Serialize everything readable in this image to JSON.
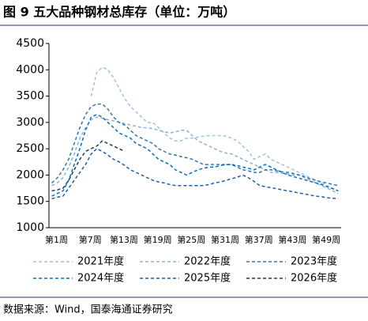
{
  "chart_data": {
    "type": "line",
    "title": "图 9 五大品种钢材总库存（单位：万吨）",
    "source": "数据来源：Wind，国泰海通证券研究",
    "categories": [
      "第1周",
      null,
      null,
      null,
      null,
      null,
      "第7周",
      null,
      null,
      null,
      null,
      null,
      "第13周",
      null,
      null,
      null,
      null,
      null,
      "第19周",
      null,
      null,
      null,
      null,
      null,
      "第25周",
      null,
      null,
      null,
      null,
      null,
      "第31周",
      null,
      null,
      null,
      null,
      null,
      "第37周",
      null,
      null,
      null,
      null,
      null,
      "第43周",
      null,
      null,
      null,
      null,
      null,
      "第49周",
      null,
      null,
      null
    ],
    "ylim": [
      1000,
      4500
    ],
    "yticks": [
      1000,
      1500,
      2000,
      2500,
      3000,
      3500,
      4000,
      4500
    ],
    "grid": false,
    "legend": "bottom",
    "series": [
      {
        "name": "2021年度",
        "color": "#9dc3e6",
        "values": [
          null,
          null,
          null,
          null,
          null,
          null,
          null,
          3500,
          3950,
          4050,
          4000,
          3850,
          3650,
          3450,
          3300,
          3200,
          3100,
          3000,
          3000,
          2900,
          2800,
          2700,
          2650,
          2650,
          2700,
          2700,
          2720,
          2740,
          2750,
          2750,
          2750,
          2740,
          2700,
          2650,
          2550,
          2450,
          2300,
          2350,
          2400,
          2300,
          2250,
          2200,
          2150,
          2100,
          2050,
          2000,
          1950,
          1900,
          1850,
          1800,
          1750,
          1700
        ]
      },
      {
        "name": "2022年度",
        "color": "#8fb0dc",
        "values": [
          1800,
          1850,
          1950,
          2150,
          2400,
          2700,
          2900,
          3050,
          3100,
          3080,
          3050,
          3030,
          3000,
          2980,
          2950,
          2930,
          2900,
          2900,
          2880,
          2850,
          2820,
          2800,
          2820,
          2850,
          2850,
          2750,
          2650,
          2600,
          2550,
          2500,
          2450,
          2420,
          2400,
          2350,
          2300,
          2250,
          2200,
          2150,
          2100,
          2050,
          2050,
          2030,
          2020,
          2000,
          2000,
          1950,
          1900,
          1850,
          1800,
          1750,
          1700,
          1650
        ]
      },
      {
        "name": "2023年度",
        "color": "#2e75b6",
        "values": [
          1850,
          1950,
          2100,
          2300,
          2600,
          2900,
          3150,
          3300,
          3350,
          3350,
          3250,
          3100,
          3000,
          2950,
          2850,
          2750,
          2700,
          2650,
          2600,
          2500,
          2450,
          2400,
          2380,
          2350,
          2330,
          2300,
          2250,
          2200,
          2200,
          2200,
          2200,
          2200,
          2200,
          2150,
          2100,
          2080,
          2050,
          2050,
          2100,
          2100,
          2080,
          2060,
          2050,
          2030,
          2000,
          1970,
          1930,
          1900,
          1870,
          1850,
          1820,
          1800
        ]
      },
      {
        "name": "2024年度",
        "color": "#0070c0",
        "values": [
          1600,
          1650,
          1700,
          1900,
          2200,
          2500,
          2850,
          3100,
          3150,
          3100,
          3000,
          2900,
          2800,
          2750,
          2700,
          2600,
          2550,
          2500,
          2400,
          2300,
          2250,
          2200,
          2100,
          2050,
          2000,
          2050,
          2100,
          2130,
          2150,
          2150,
          2180,
          2200,
          2200,
          2180,
          2150,
          2130,
          2100,
          2150,
          2200,
          2150,
          2100,
          2050,
          2000,
          1970,
          1940,
          1910,
          1880,
          1850,
          1820,
          1780,
          1740,
          1700
        ]
      },
      {
        "name": "2025年度",
        "color": "#1f5fa8",
        "values": [
          1550,
          1580,
          1600,
          1750,
          1900,
          2050,
          2200,
          2400,
          2500,
          2450,
          2380,
          2300,
          2250,
          2180,
          2100,
          2050,
          2000,
          1950,
          1900,
          1870,
          1850,
          1820,
          1800,
          1800,
          1800,
          1800,
          1800,
          1800,
          1820,
          1850,
          1870,
          1900,
          1930,
          1960,
          2000,
          1950,
          1880,
          1800,
          1780,
          1760,
          1740,
          1720,
          1700,
          1680,
          1660,
          1640,
          1620,
          1600,
          1590,
          1570,
          1560,
          1550
        ]
      },
      {
        "name": "2026年度",
        "color": "#1f3864",
        "values": [
          1700,
          1720,
          1750,
          1900,
          2100,
          2300,
          2450,
          2500,
          2550,
          2650,
          2600,
          2550,
          2500,
          2450,
          null,
          null,
          null,
          null,
          null,
          null,
          null,
          null,
          null,
          null,
          null,
          null,
          null,
          null,
          null,
          null,
          null,
          null,
          null,
          null,
          null,
          null,
          null,
          null,
          null,
          null,
          null,
          null,
          null,
          null,
          null,
          null,
          null,
          null,
          null,
          null,
          null,
          null
        ]
      }
    ]
  }
}
